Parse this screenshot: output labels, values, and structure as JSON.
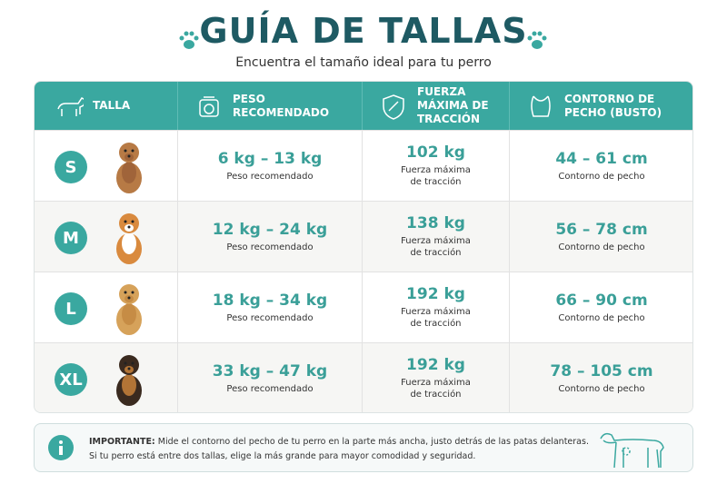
{
  "header": {
    "title": "GUÍA DE TALLAS",
    "subtitle": "Encuentra el tamaño ideal para tu perro"
  },
  "table": {
    "columns": [
      "TALLA",
      "PESO RECOMENDADO",
      "FUERZA MÁXIMA DE TRACCIÓN",
      "CONTORNO DE PECHO (BUSTO)"
    ],
    "rows": [
      {
        "size": "S",
        "weight": "6 kg – 13 kg",
        "weight_note": "Peso recomendado",
        "force": "102 kg",
        "force_note": "Fuerza máxima de tracción",
        "chest": "44 – 61 cm",
        "chest_note": "Contorno de pecho"
      },
      {
        "size": "M",
        "weight": "12 kg – 24 kg",
        "weight_note": "Peso recomendado",
        "force": "138 kg",
        "force_note": "Fuerza máxima de tracción",
        "chest": "56 – 78 cm",
        "chest_note": "Contorno de pecho"
      },
      {
        "size": "L",
        "weight": "18 kg – 34 kg",
        "weight_note": "Peso recomendado",
        "force": "192 kg",
        "force_note": "Fuerza máxima de tracción",
        "chest": "66 – 90 cm",
        "chest_note": "Contorno de pecho"
      },
      {
        "size": "XL",
        "weight": "33 kg – 47 kg",
        "weight_note": "Peso recomendado",
        "force": "192 kg",
        "force_note": "Fuerza máxima de tracción",
        "chest": "78 – 105 cm",
        "chest_note": "Contorno de pecho"
      }
    ]
  },
  "note": {
    "label": "IMPORTANTE:",
    "line1": "Mide el contorno del pecho de tu perro en la parte más ancha, justo detrás de las patas delanteras.",
    "line2": "Si tu perro está entre dos tallas, elige la más grande para mayor comodidad y seguridad."
  }
}
